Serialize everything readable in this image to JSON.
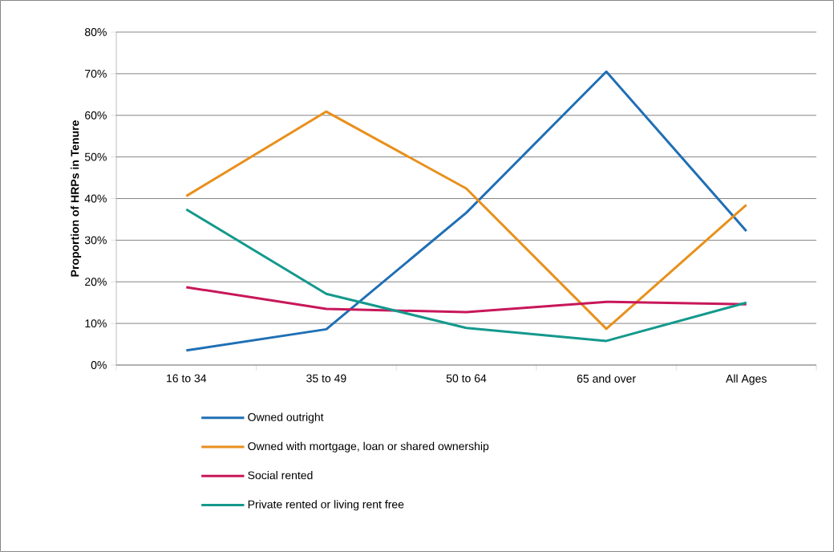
{
  "chart_data": {
    "type": "line",
    "ylabel": "Proportion of HRPs in Tenure",
    "categories": [
      "16 to 34",
      "35 to 49",
      "50 to 64",
      "65 and over",
      "All Ages"
    ],
    "series": [
      {
        "name": "Owned outright",
        "color": "#1f6fb5",
        "values": [
          3.5,
          8.6,
          36.6,
          70.5,
          32.2
        ]
      },
      {
        "name": "Owned with mortgage, loan or shared ownership",
        "color": "#e8901c",
        "values": [
          40.6,
          60.9,
          42.4,
          8.7,
          38.5
        ]
      },
      {
        "name": "Social rented",
        "color": "#c8175a",
        "values": [
          18.7,
          13.5,
          12.7,
          15.2,
          14.6
        ]
      },
      {
        "name": "Private rented or living rent free",
        "color": "#14998c",
        "values": [
          37.4,
          17.1,
          8.9,
          5.8,
          15.0
        ]
      }
    ],
    "ylim": [
      0,
      80
    ],
    "yticks": [
      {
        "value": 0,
        "label": "0%"
      },
      {
        "value": 10,
        "label": "10%"
      },
      {
        "value": 20,
        "label": "20%"
      },
      {
        "value": 30,
        "label": "30%"
      },
      {
        "value": 40,
        "label": "40%"
      },
      {
        "value": 50,
        "label": "50%"
      },
      {
        "value": 60,
        "label": "60%"
      },
      {
        "value": 70,
        "label": "70%"
      },
      {
        "value": 80,
        "label": "80%"
      }
    ],
    "grid": "y",
    "legend": "bottom",
    "marker": "none",
    "line_style": "solid"
  }
}
